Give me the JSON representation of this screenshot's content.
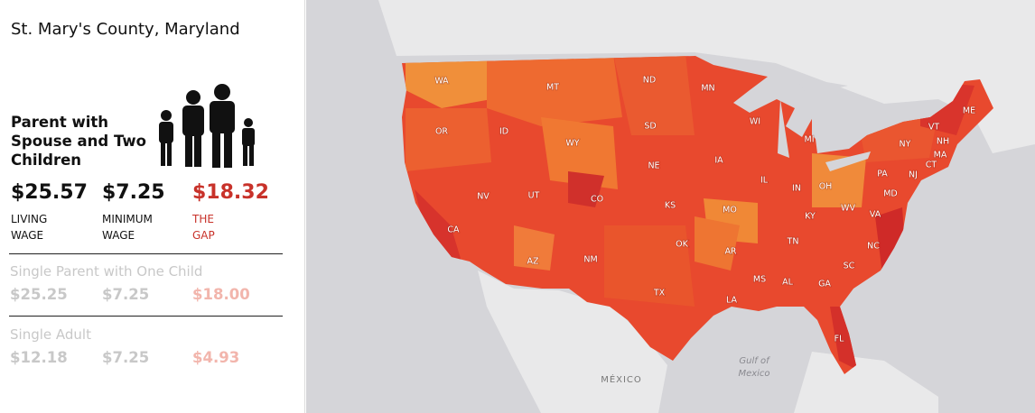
{
  "location": "St. Mary's County, Maryland",
  "families": [
    {
      "title": "Parent with Spouse and Two Children",
      "living_wage": "$25.57",
      "minimum_wage": "$7.25",
      "gap": "$18.32",
      "labels": [
        "LIVING WAGE",
        "MINIMUM WAGE",
        "THE GAP"
      ]
    },
    {
      "title": "Single Parent with One Child",
      "living_wage": "$25.25",
      "minimum_wage": "$7.25",
      "gap": "$18.00"
    },
    {
      "title": "Single Adult",
      "living_wage": "$12.18",
      "minimum_wage": "$7.25",
      "gap": "$4.93"
    }
  ],
  "map": {
    "state_labels": [
      "WA",
      "MT",
      "ND",
      "MN",
      "OR",
      "ID",
      "SD",
      "WI",
      "MI",
      "WY",
      "VT",
      "ME",
      "NY",
      "NH",
      "IA",
      "NE",
      "OH",
      "PA",
      "CT",
      "MA",
      "NJ",
      "NV",
      "UT",
      "IL",
      "IN",
      "CO",
      "MD",
      "WV",
      "VA",
      "KS",
      "MO",
      "KY",
      "CA",
      "OK",
      "TN",
      "NC",
      "AR",
      "AZ",
      "NM",
      "SC",
      "MS",
      "AL",
      "GA",
      "TX",
      "LA",
      "FL"
    ],
    "country_label": "MÉXICO",
    "water_label": "Gulf of Mexico"
  }
}
